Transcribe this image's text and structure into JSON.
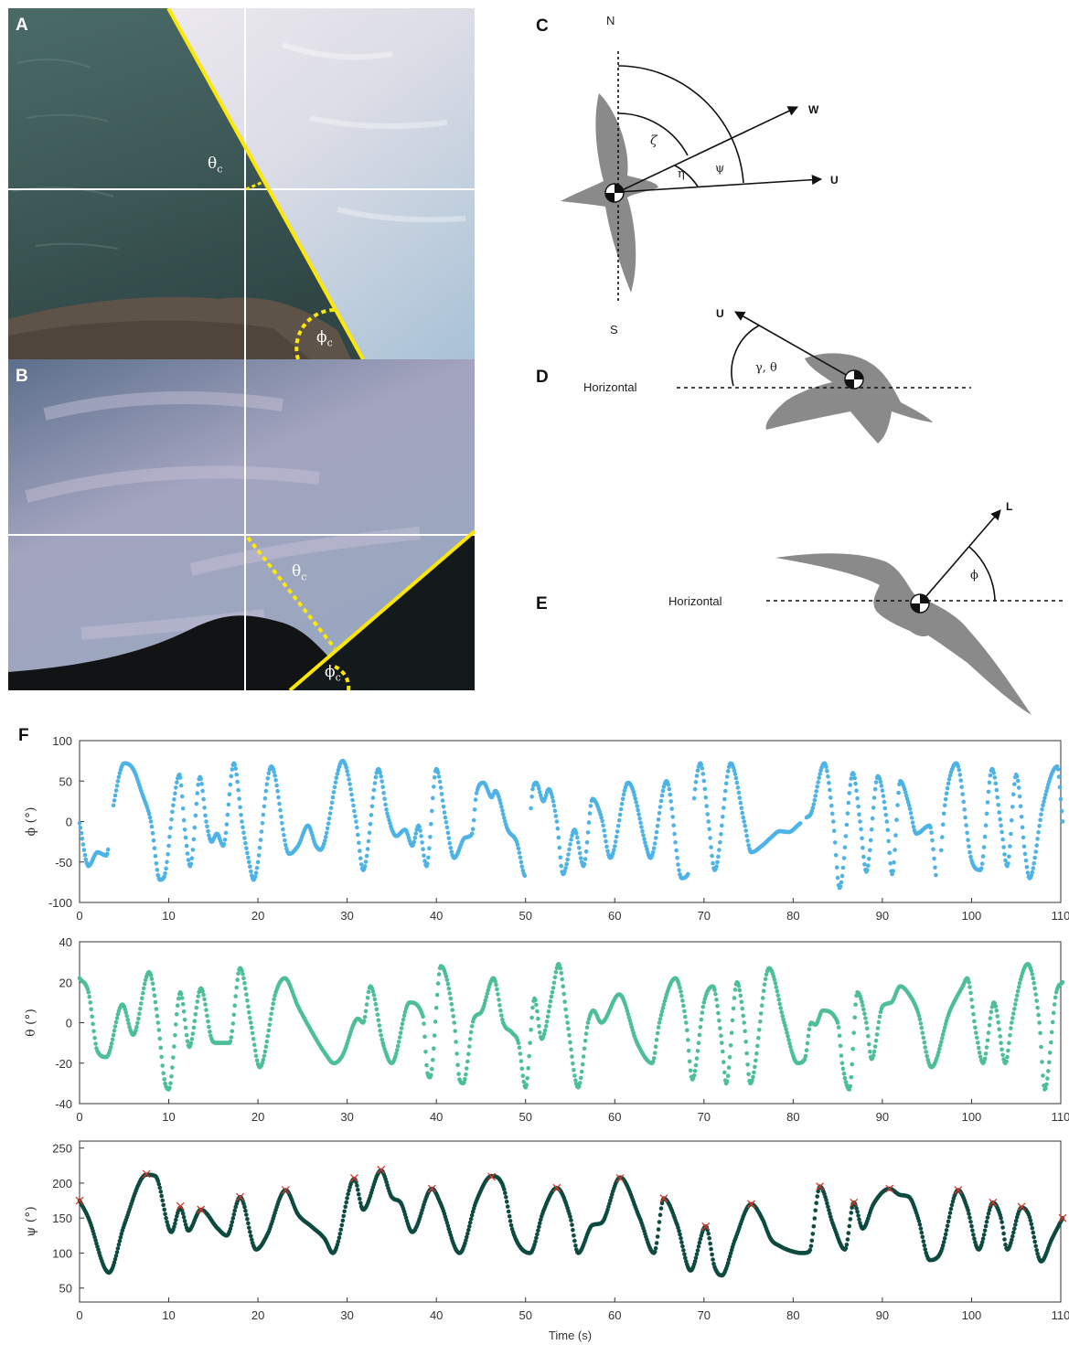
{
  "panels": {
    "a": {
      "letter": "A",
      "theta_label": "θ",
      "theta_sub": "c",
      "phi_label": "ϕ",
      "phi_sub": "c"
    },
    "b": {
      "letter": "B",
      "theta_label": "θ",
      "theta_sub": "c",
      "phi_label": "ϕ",
      "phi_sub": "c"
    },
    "c": {
      "letter": "C",
      "north": "N",
      "south": "S",
      "wind_vec": "W",
      "air_vec": "U",
      "zeta": "ζ",
      "eta": "η",
      "psi": "ψ"
    },
    "d": {
      "letter": "D",
      "horizontal": "Horizontal",
      "air_vec": "U",
      "angle": "γ, θ"
    },
    "e": {
      "letter": "E",
      "horizontal": "Horizontal",
      "lift_vec": "L",
      "angle": "ϕ"
    },
    "f": {
      "letter": "F"
    }
  },
  "colors": {
    "phi": "#4db3e6",
    "theta": "#4cbf9a",
    "psi": "#0d4a40",
    "peak": "#d9342b",
    "highlight": "#ffe800"
  },
  "chart_data": [
    {
      "type": "scatter",
      "ylabel": "ϕ (°)",
      "xlim": [
        0,
        110
      ],
      "ylim": [
        -100,
        100
      ],
      "xticks": [
        0,
        10,
        20,
        30,
        40,
        50,
        60,
        70,
        80,
        90,
        100,
        110
      ],
      "yticks": [
        -100,
        -50,
        0,
        50,
        100
      ],
      "gaps": [
        [
          3.3,
          3.8
        ],
        [
          50.0,
          50.6
        ],
        [
          68.3,
          68.9
        ],
        [
          80.8,
          81.4
        ],
        [
          96.0,
          96.5
        ]
      ],
      "keypoints": [
        [
          0,
          -2
        ],
        [
          1,
          -55
        ],
        [
          2,
          -38
        ],
        [
          3,
          -42
        ],
        [
          3.8,
          20
        ],
        [
          5,
          72
        ],
        [
          6,
          65
        ],
        [
          7,
          35
        ],
        [
          8,
          0
        ],
        [
          9,
          -72
        ],
        [
          9.5,
          -68
        ],
        [
          10.5,
          20
        ],
        [
          11.2,
          58
        ],
        [
          11.8,
          -10
        ],
        [
          12.4,
          -55
        ],
        [
          13.5,
          55
        ],
        [
          14.2,
          0
        ],
        [
          14.8,
          -25
        ],
        [
          15.4,
          -15
        ],
        [
          16.1,
          -30
        ],
        [
          17.3,
          72
        ],
        [
          18.2,
          0
        ],
        [
          19,
          -50
        ],
        [
          19.5,
          -72
        ],
        [
          21.5,
          68
        ],
        [
          23.5,
          -40
        ],
        [
          24.5,
          -30
        ],
        [
          25.6,
          -5
        ],
        [
          26.5,
          -30
        ],
        [
          27,
          -35
        ],
        [
          29.5,
          75
        ],
        [
          31,
          0
        ],
        [
          31.8,
          -60
        ],
        [
          33.5,
          65
        ],
        [
          34.5,
          10
        ],
        [
          35.5,
          -18
        ],
        [
          36.5,
          -10
        ],
        [
          37.3,
          -30
        ],
        [
          38,
          -5
        ],
        [
          38.9,
          -55
        ],
        [
          40,
          65
        ],
        [
          41,
          5
        ],
        [
          42,
          -45
        ],
        [
          43.2,
          -20
        ],
        [
          44,
          -15
        ],
        [
          44.5,
          35
        ],
        [
          45.3,
          48
        ],
        [
          46.2,
          30
        ],
        [
          46.6,
          38
        ],
        [
          48,
          -10
        ],
        [
          49,
          -25
        ],
        [
          50,
          -68
        ],
        [
          50.8,
          40
        ],
        [
          51.2,
          48
        ],
        [
          52,
          25
        ],
        [
          52.6,
          40
        ],
        [
          53.5,
          0
        ],
        [
          54.2,
          -65
        ],
        [
          55.5,
          -10
        ],
        [
          56.5,
          -55
        ],
        [
          57.5,
          28
        ],
        [
          58.5,
          5
        ],
        [
          59.5,
          -45
        ],
        [
          61.5,
          48
        ],
        [
          62,
          40
        ],
        [
          63.5,
          -30
        ],
        [
          64,
          -45
        ],
        [
          65.8,
          50
        ],
        [
          67.5,
          -70
        ],
        [
          68.2,
          -65
        ],
        [
          69,
          40
        ],
        [
          69.6,
          72
        ],
        [
          70.5,
          0
        ],
        [
          71.2,
          -60
        ],
        [
          73,
          72
        ],
        [
          74.5,
          0
        ],
        [
          75.3,
          -38
        ],
        [
          76.5,
          -30
        ],
        [
          77.5,
          -20
        ],
        [
          78.5,
          -12
        ],
        [
          79.5,
          -13
        ],
        [
          80.5,
          -5
        ],
        [
          81.5,
          5
        ],
        [
          82,
          10
        ],
        [
          83.5,
          72
        ],
        [
          84.5,
          0
        ],
        [
          85.2,
          -82
        ],
        [
          86.7,
          60
        ],
        [
          87.5,
          0
        ],
        [
          88.2,
          -62
        ],
        [
          89.5,
          56
        ],
        [
          90.5,
          0
        ],
        [
          91.1,
          -65
        ],
        [
          92,
          50
        ],
        [
          93,
          20
        ],
        [
          93.8,
          -15
        ],
        [
          95.3,
          -5
        ],
        [
          96.2,
          -75
        ],
        [
          97,
          20
        ],
        [
          98.3,
          72
        ],
        [
          100,
          -48
        ],
        [
          101,
          -60
        ],
        [
          102.3,
          65
        ],
        [
          103.3,
          -5
        ],
        [
          104,
          -55
        ],
        [
          105,
          58
        ],
        [
          106,
          -40
        ],
        [
          106.5,
          -70
        ],
        [
          108,
          20
        ],
        [
          109.6,
          68
        ],
        [
          110.2,
          0
        ]
      ]
    },
    {
      "type": "scatter",
      "ylabel": "θ (°)",
      "xlim": [
        0,
        110
      ],
      "ylim": [
        -40,
        40
      ],
      "xticks": [
        0,
        10,
        20,
        30,
        40,
        50,
        60,
        70,
        80,
        90,
        100,
        110
      ],
      "yticks": [
        -40,
        -20,
        0,
        20,
        40
      ],
      "gaps": [],
      "keypoints": [
        [
          0,
          22
        ],
        [
          1,
          15
        ],
        [
          2,
          -14
        ],
        [
          3,
          -17
        ],
        [
          4.8,
          9
        ],
        [
          6,
          -6
        ],
        [
          7.8,
          25
        ],
        [
          8.8,
          0
        ],
        [
          9.5,
          -28
        ],
        [
          10,
          -33
        ],
        [
          11.3,
          15
        ],
        [
          12.3,
          -12
        ],
        [
          13.6,
          17
        ],
        [
          14.8,
          -8
        ],
        [
          15.3,
          -10
        ],
        [
          16.8,
          -10
        ],
        [
          18,
          27
        ],
        [
          19.2,
          0
        ],
        [
          20.2,
          -22
        ],
        [
          22,
          15
        ],
        [
          23,
          22
        ],
        [
          24.5,
          8
        ],
        [
          26.5,
          -8
        ],
        [
          27.5,
          -15
        ],
        [
          28.5,
          -20
        ],
        [
          29.5,
          -16
        ],
        [
          30.8,
          0
        ],
        [
          31.2,
          2
        ],
        [
          31.8,
          0
        ],
        [
          32.6,
          18
        ],
        [
          34,
          -10
        ],
        [
          35,
          -20
        ],
        [
          37,
          10
        ],
        [
          38.5,
          3
        ],
        [
          39,
          -25
        ],
        [
          39.3,
          -27
        ],
        [
          40.5,
          28
        ],
        [
          42,
          0
        ],
        [
          42.6,
          -28
        ],
        [
          43,
          -30
        ],
        [
          44.2,
          2
        ],
        [
          45,
          5
        ],
        [
          46.4,
          22
        ],
        [
          47.5,
          0
        ],
        [
          48.5,
          -5
        ],
        [
          49.2,
          -10
        ],
        [
          50,
          -32
        ],
        [
          51,
          12
        ],
        [
          51.8,
          -8
        ],
        [
          53,
          15
        ],
        [
          53.7,
          29
        ],
        [
          54.7,
          0
        ],
        [
          55.9,
          -32
        ],
        [
          57,
          0
        ],
        [
          57.6,
          6
        ],
        [
          58.5,
          0
        ],
        [
          60.5,
          14
        ],
        [
          62.5,
          -10
        ],
        [
          64.2,
          -20
        ],
        [
          65,
          0
        ],
        [
          66.8,
          22
        ],
        [
          68,
          0
        ],
        [
          68.7,
          -28
        ],
        [
          70,
          10
        ],
        [
          71,
          18
        ],
        [
          72,
          -10
        ],
        [
          72.5,
          -30
        ],
        [
          73.7,
          20
        ],
        [
          74.5,
          0
        ],
        [
          75.2,
          -30
        ],
        [
          77.3,
          27
        ],
        [
          79,
          0
        ],
        [
          80.5,
          -20
        ],
        [
          81.3,
          -18
        ],
        [
          82,
          0
        ],
        [
          82.5,
          -1
        ],
        [
          83.3,
          6
        ],
        [
          85,
          0
        ],
        [
          85.5,
          -20
        ],
        [
          86.3,
          -33
        ],
        [
          87.2,
          15
        ],
        [
          88.2,
          0
        ],
        [
          88.8,
          -18
        ],
        [
          90,
          8
        ],
        [
          91,
          10
        ],
        [
          92,
          18
        ],
        [
          93,
          14
        ],
        [
          94,
          5
        ],
        [
          95.5,
          -22
        ],
        [
          97.5,
          5
        ],
        [
          99,
          18
        ],
        [
          99.5,
          22
        ],
        [
          100.5,
          -5
        ],
        [
          101.3,
          -20
        ],
        [
          102.5,
          10
        ],
        [
          103.8,
          -20
        ],
        [
          104.5,
          0
        ],
        [
          106.3,
          29
        ],
        [
          107.6,
          0
        ],
        [
          108.2,
          -33
        ],
        [
          109.5,
          15
        ],
        [
          110.2,
          20
        ]
      ]
    },
    {
      "type": "scatter",
      "ylabel": "ψ (°)",
      "xlabel": "Time (s)",
      "xlim": [
        0,
        110
      ],
      "ylim": [
        30,
        260
      ],
      "xticks": [
        0,
        10,
        20,
        30,
        40,
        50,
        60,
        70,
        80,
        90,
        100,
        110
      ],
      "yticks": [
        50,
        100,
        150,
        200,
        250
      ],
      "gaps": [],
      "keypoints": [
        [
          0,
          175
        ],
        [
          1,
          150
        ],
        [
          3.3,
          72
        ],
        [
          5,
          140
        ],
        [
          7.5,
          212
        ],
        [
          8.5,
          210
        ],
        [
          10.3,
          130
        ],
        [
          11.3,
          165
        ],
        [
          12.2,
          132
        ],
        [
          13.6,
          162
        ],
        [
          15.5,
          135
        ],
        [
          16.5,
          125
        ],
        [
          18,
          180
        ],
        [
          19.8,
          105
        ],
        [
          21,
          125
        ],
        [
          23.1,
          190
        ],
        [
          24.5,
          155
        ],
        [
          26,
          138
        ],
        [
          27.5,
          120
        ],
        [
          28.4,
          100
        ],
        [
          30.8,
          206
        ],
        [
          31.8,
          162
        ],
        [
          33.8,
          218
        ],
        [
          35,
          180
        ],
        [
          36,
          172
        ],
        [
          37.3,
          130
        ],
        [
          39.5,
          192
        ],
        [
          40.5,
          170
        ],
        [
          42.6,
          100
        ],
        [
          44.5,
          175
        ],
        [
          46.2,
          210
        ],
        [
          47.5,
          195
        ],
        [
          48.6,
          130
        ],
        [
          50.5,
          100
        ],
        [
          52,
          160
        ],
        [
          53.5,
          193
        ],
        [
          55,
          152
        ],
        [
          55.9,
          100
        ],
        [
          57.5,
          140
        ],
        [
          58.5,
          143
        ],
        [
          60.6,
          208
        ],
        [
          62.8,
          150
        ],
        [
          64.4,
          100
        ],
        [
          65.5,
          178
        ],
        [
          67,
          140
        ],
        [
          68.5,
          75
        ],
        [
          70.2,
          138
        ],
        [
          71.2,
          80
        ],
        [
          72,
          68
        ],
        [
          73.5,
          120
        ],
        [
          75.3,
          170
        ],
        [
          76.5,
          150
        ],
        [
          77.5,
          120
        ],
        [
          78.5,
          110
        ],
        [
          80,
          102
        ],
        [
          81,
          100
        ],
        [
          81.8,
          102
        ],
        [
          83,
          195
        ],
        [
          84.5,
          140
        ],
        [
          85.8,
          105
        ],
        [
          86.8,
          172
        ],
        [
          87.8,
          135
        ],
        [
          89,
          170
        ],
        [
          90.8,
          192
        ],
        [
          92,
          183
        ],
        [
          93,
          180
        ],
        [
          94,
          150
        ],
        [
          95.3,
          90
        ],
        [
          96.5,
          100
        ],
        [
          98.5,
          190
        ],
        [
          99.5,
          165
        ],
        [
          100.8,
          105
        ],
        [
          102.4,
          172
        ],
        [
          103.3,
          150
        ],
        [
          104,
          105
        ],
        [
          105.6,
          165
        ],
        [
          106.4,
          155
        ],
        [
          107.8,
          88
        ],
        [
          109,
          120
        ],
        [
          110.2,
          150
        ]
      ],
      "peaks": [
        [
          0,
          175
        ],
        [
          7.5,
          213
        ],
        [
          11.3,
          167
        ],
        [
          13.6,
          162
        ],
        [
          18,
          180
        ],
        [
          23.1,
          190
        ],
        [
          30.8,
          207
        ],
        [
          33.8,
          219
        ],
        [
          39.5,
          192
        ],
        [
          46.2,
          209
        ],
        [
          53.5,
          193
        ],
        [
          60.6,
          207
        ],
        [
          65.5,
          178
        ],
        [
          70.2,
          138
        ],
        [
          75.3,
          170
        ],
        [
          83,
          195
        ],
        [
          86.8,
          172
        ],
        [
          90.8,
          192
        ],
        [
          98.5,
          190
        ],
        [
          102.4,
          172
        ],
        [
          105.6,
          166
        ],
        [
          110.2,
          150
        ]
      ]
    }
  ]
}
